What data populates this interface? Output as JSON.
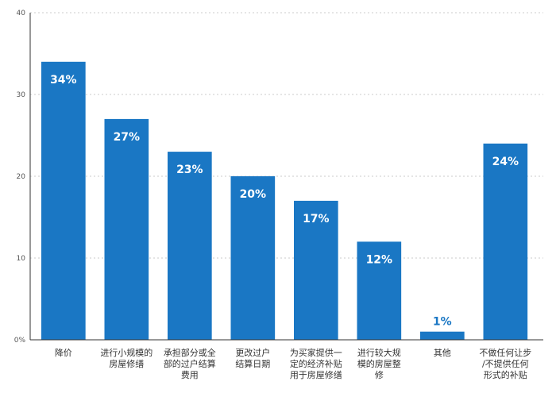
{
  "chart_data": {
    "type": "bar",
    "categories": [
      [
        "降价"
      ],
      [
        "进行小规模的",
        "房屋修缮"
      ],
      [
        "承担部分或全",
        "部的过户结算",
        "费用"
      ],
      [
        "更改过户",
        "结算日期"
      ],
      [
        "为买家提供一",
        "定的经济补贴",
        "用于房屋修缮"
      ],
      [
        "进行较大规",
        "模的房屋整",
        "修"
      ],
      [
        "其他"
      ],
      [
        "不做任何让步",
        "/不提供任何",
        "形式的补贴"
      ]
    ],
    "values": [
      34,
      27,
      23,
      20,
      17,
      12,
      1,
      24
    ],
    "data_labels": [
      "34%",
      "27%",
      "23%",
      "20%",
      "17%",
      "12%",
      "1%",
      "24%"
    ],
    "ylim": [
      0,
      40
    ],
    "yticks": [
      0,
      10,
      20,
      30,
      40
    ],
    "ytick_labels": [
      "0%",
      "10",
      "20",
      "30",
      "40"
    ],
    "grid": "horizontal-dashed",
    "colors": {
      "bar": "#1a77c4",
      "label_inside": "#ffffff",
      "label_outside": "#1a77c4",
      "axis": "#333333",
      "grid": "#bbbbbb"
    }
  }
}
